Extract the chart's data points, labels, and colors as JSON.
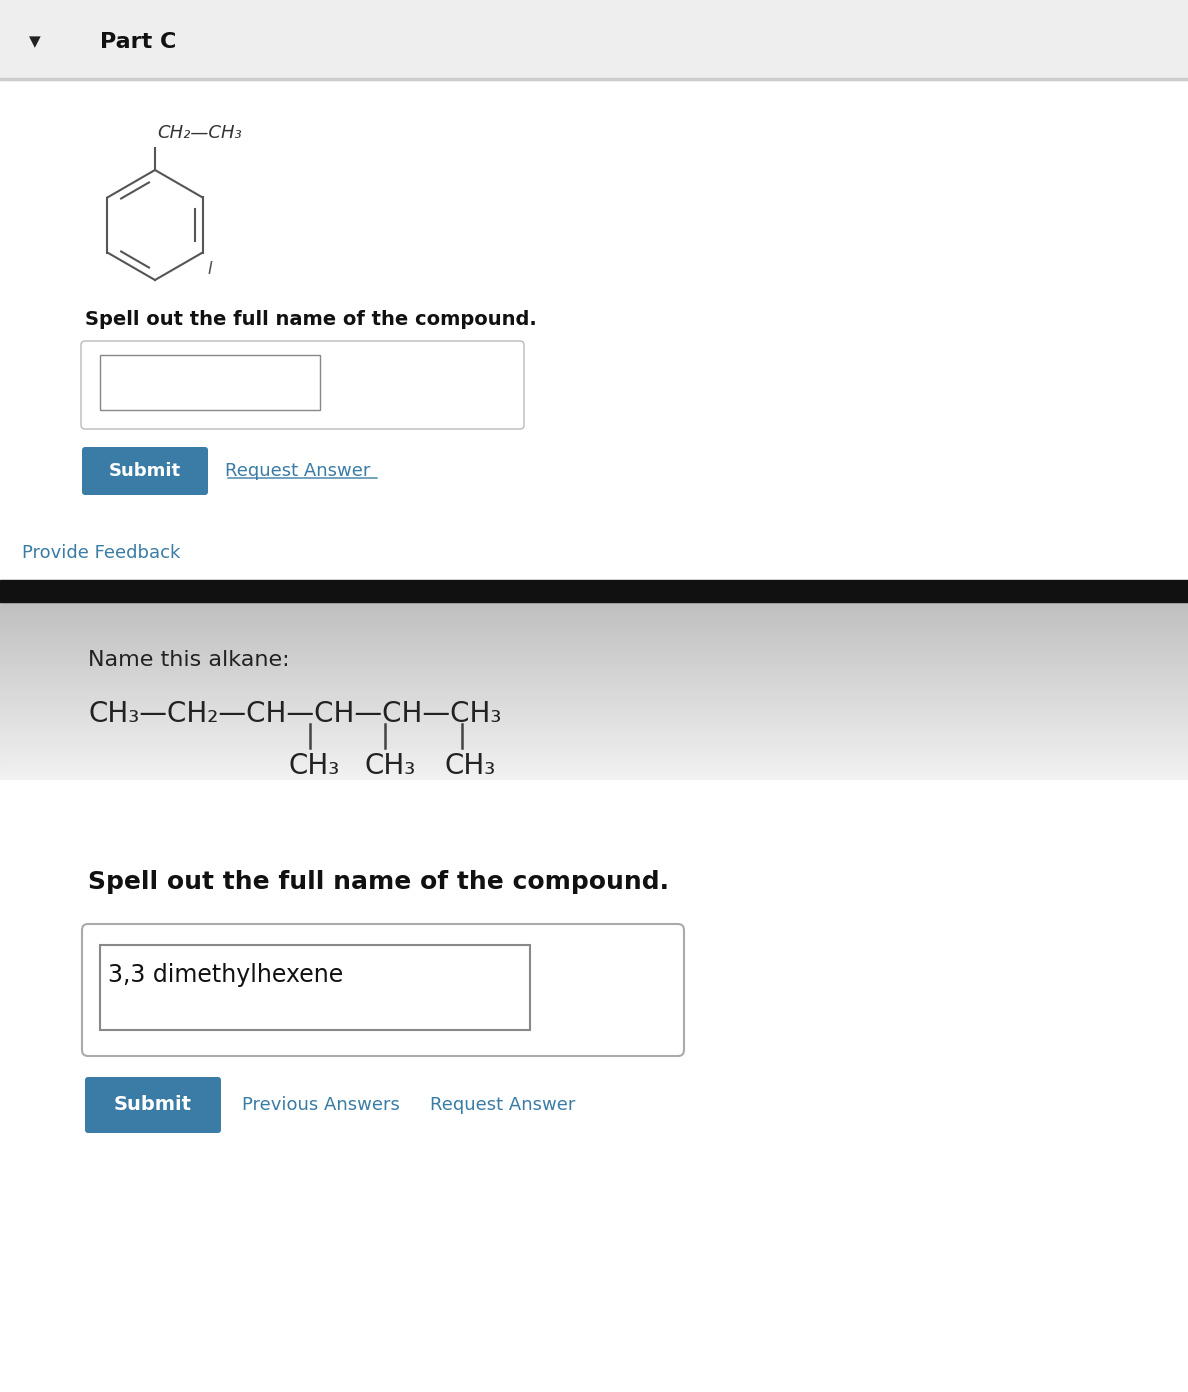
{
  "bg_top": "#f5f5f5",
  "bg_white": "#ffffff",
  "bg_gray_section": "#d0d0d0",
  "bg_bottom_white": "#ffffff",
  "part_c_header_bg": "#eeeeee",
  "part_c_text": "Part C",
  "triangle_color": "#222222",
  "header_border": "#cccccc",
  "spell_prompt1": "Spell out the full name of the compound.",
  "spell_prompt2": "Spell out the full name of the compound.",
  "name_alkane_text": "Name this alkane:",
  "alkane_formula": "CH₃—CH₂—CH—CH—CH—CH₃",
  "substituents_line": "CH₃   CH₃  CH₃",
  "answer_text": "3,3 dimethylhexene",
  "submit_bg": "#3a7ca5",
  "submit_text_color": "#ffffff",
  "link_color": "#3a7ca5",
  "provide_feedback_text": "Provide Feedback",
  "request_answer_text1": "Request Answer",
  "request_answer_text2": "Request Answer",
  "previous_answers_text": "Previous Answers",
  "submit_label": "Submit",
  "input_border": "#aaaaaa",
  "separator_color": "#222222",
  "ch2_ch3_label": "CH₂—CH₃",
  "benzene_I_label": "I"
}
